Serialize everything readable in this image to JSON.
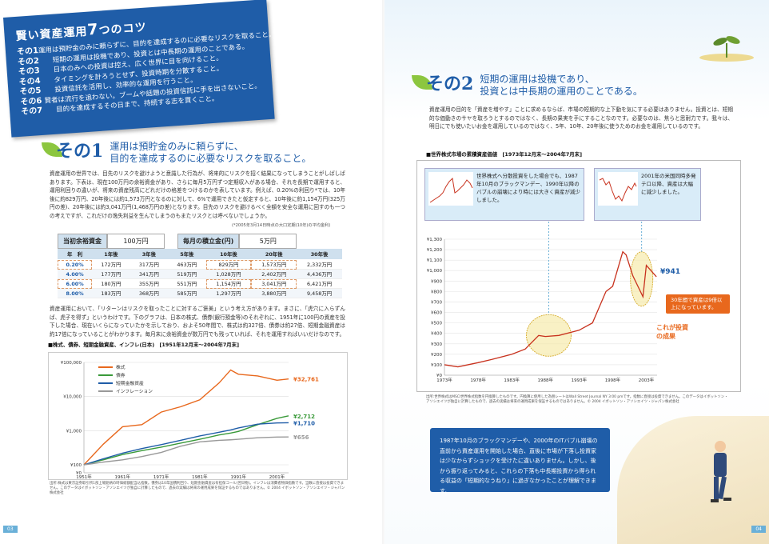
{
  "tips": {
    "title_prefix": "賢い資産運用",
    "title_big": "7",
    "title_suffix": "つのコツ",
    "items": [
      {
        "num": "その1",
        "text": "運用は預貯金のみに頼らずに、目的を達成するのに必要なリスクを取ること。"
      },
      {
        "num": "その2",
        "text": "短期の運用は投機であり、投資とは中長期の運用のことである。"
      },
      {
        "num": "その3",
        "text": "日本のみへの投資は控え、広く世界に目を向けること。"
      },
      {
        "num": "その4",
        "text": "タイミングを計ろうとせず、投資時期を分散すること。"
      },
      {
        "num": "その5",
        "text": "投資信託を活用し、効率的な運用を行うこと。"
      },
      {
        "num": "その6",
        "text": "賢者は流行を追わない。ブームや話題の投資信託に手を出さないこと。"
      },
      {
        "num": "その7",
        "text": "目的を達成するその日まで、持続する志を貫くこと。"
      }
    ]
  },
  "sec1": {
    "num": "その1",
    "title_line1": "運用は預貯金のみに頼らずに、",
    "title_line2": "目的を達成するのに必要なリスクを取ること。",
    "body1": "資産運用の世界では、目先のリスクを避けようと意識した行為が、将来的にリスクを招く結果になってしまうことがしばしばあります。下表は、現在100万円の余裕資金があり、さらに毎月5万円ずつ定期収入がある場合、それを長期で運用すると、運用利回りの違いが、将来の資産残高にどれだけの格差をつけるのかを表しています。例えば、0.20%の利回り*では、10年後に約829万円、20年後には約1,573万円となるのに対して、6%で運用できたと仮定すると、10年後に約1,154万円(325万円の差)、20年後には約3,041万円(1,468万円の差)となります。目先のリスクを避けるべく全額を安全な運用に回すのも一つの考えですが、これだけの逸失利益を生んでしまうのもまたリスクとは呼べないでしょうか。",
    "note": "(*2005年3月14日時点の大口定期(10年)の平均金利)",
    "initial_label": "当初余裕資金",
    "initial_value": "100万円",
    "monthly_label": "毎月の積立金(円)",
    "monthly_value": "5万円",
    "table": {
      "headers": [
        "年　利",
        "1年後",
        "3年後",
        "5年後",
        "10年後",
        "20年後",
        "30年後"
      ],
      "rows": [
        [
          "0.20%",
          "172万円",
          "317万円",
          "463万円",
          "829万円",
          "1,573万円",
          "2,332万円"
        ],
        [
          "4.00%",
          "177万円",
          "341万円",
          "519万円",
          "1,028万円",
          "2,402万円",
          "4,436万円"
        ],
        [
          "6.00%",
          "180万円",
          "355万円",
          "551万円",
          "1,154万円",
          "3,041万円",
          "6,421万円"
        ],
        [
          "8.00%",
          "183万円",
          "368万円",
          "585万円",
          "1,297万円",
          "3,880万円",
          "9,458万円"
        ]
      ]
    },
    "body2": "資産運用において、「リターンはリスクを取ったことに対するご褒美」という考え方があります。まさに、「虎穴に入らずんば、虎子を得ず」というわけです。下のグラフは、日本の株式、債券(銀行預金等)のそれぞれに、1951年に100円の資産を投下した場合、現在いくらになっていたかを示しており、およそ50年間で、株式は約327倍、債券は約27倍、短期金融資産は約17倍になっていることがわかります。毎月末に余裕資金が数万円でも残っていれば、それを運用すればいいだけなのです。",
    "chart_title": "■株式、債券、短期金融資産、インフレ(日本)　[1951年12月末〜2004年7月末]",
    "chart_src": "出所:株式は東京証券取引所1部上場銘柄の時価総額配当込指数。債券は10年国債利回り、短期金融資産は有担保コール(翌日物)。インフレは消費者物価指数です。当数に直接は投資できません。このデータはイボットソン・アソシエイツが独自に計算したもので、過去の実績は将来の運用成果を保証するものではありません。© 2004 イボットソン・アソシエイツ・ジャパン株式会社",
    "page_num": "03"
  },
  "chart_data": [
    {
      "type": "line",
      "title": "株式、債券、短期金融資産、インフレ(日本)",
      "ylabel_ticks": [
        "¥0",
        "¥100",
        "¥1,000",
        "¥10,000",
        "¥100,000"
      ],
      "x_ticks": [
        "1951年",
        "1961年",
        "1971年",
        "1981年",
        "1991年",
        "2001年"
      ],
      "yscale": "log",
      "ylim": [
        100,
        100000
      ],
      "x": [
        1951,
        1956,
        1961,
        1966,
        1971,
        1976,
        1981,
        1986,
        1989,
        1991,
        1996,
        2001,
        2004
      ],
      "series": [
        {
          "name": "株式",
          "color": "#e8681d",
          "values": [
            100,
            400,
            1300,
            1500,
            3500,
            5000,
            8000,
            25000,
            60000,
            45000,
            40000,
            30000,
            32761
          ],
          "end_label": "¥32,761"
        },
        {
          "name": "債券",
          "color": "#3a9a3a",
          "values": [
            100,
            140,
            200,
            260,
            330,
            430,
            560,
            750,
            850,
            950,
            1500,
            2300,
            2712
          ],
          "end_label": "¥2,712"
        },
        {
          "name": "短期金融資産",
          "color": "#1f5da8",
          "values": [
            100,
            150,
            220,
            300,
            390,
            520,
            700,
            900,
            1050,
            1200,
            1550,
            1680,
            1710
          ],
          "end_label": "¥1,710"
        },
        {
          "name": "インフレーション",
          "color": "#999999",
          "values": [
            100,
            120,
            140,
            175,
            230,
            350,
            470,
            520,
            540,
            560,
            620,
            650,
            656
          ],
          "end_label": "¥656"
        }
      ]
    },
    {
      "type": "line",
      "title": "世界株式市場の累積資産価値",
      "y_ticks": [
        "¥0",
        "¥100",
        "¥200",
        "¥300",
        "¥400",
        "¥500",
        "¥600",
        "¥700",
        "¥800",
        "¥900",
        "¥1,000",
        "¥1,100",
        "¥1,200",
        "¥1,300"
      ],
      "x_ticks": [
        "1973年",
        "1978年",
        "1983年",
        "1988年",
        "1993年",
        "1998年",
        "2003年"
      ],
      "ylim": [
        0,
        1300
      ],
      "x": [
        1973,
        1975,
        1978,
        1980,
        1983,
        1985,
        1987,
        1988,
        1990,
        1993,
        1995,
        1997,
        1998,
        1999.5,
        2000,
        2001,
        2002.5,
        2003,
        2004.5
      ],
      "series": [
        {
          "name": "世界株式",
          "color": "#c8321e",
          "values": [
            100,
            80,
            120,
            150,
            200,
            250,
            380,
            370,
            380,
            430,
            500,
            800,
            850,
            1180,
            1150,
            950,
            750,
            1050,
            941
          ],
          "end_label": "¥941"
        }
      ]
    }
  ],
  "sec2": {
    "num": "その2",
    "title_line1": "短期の運用は投機であり、",
    "title_line2": "投資とは中長期の運用のことである。",
    "body": "資産運用の目的を「資産を増やす」ことに求めるならば、市場の短期的な上下動を気にする必要はありません。投資とは、短期的な価動きのサヤを取ろうとするのではなく、長期の果実を手にすることなのです。必要なのは、焦らと思耐力です。我々は、明日にでも使いたいお金を運用しているのではなく、5年、10年、20年後に使うためのお金を運用しているのです。",
    "chart_title": "■世界株式市場の累積資産価値　[1973年12月末〜2004年7月末]",
    "callout1": "世界株式へ分散投資をした場合でも、1987年10月のブラックマンデー、1990年以降のバブルの崩壊により時には大きく資産が減少しました。",
    "callout2": "2001年の米国同時多発テロ以降、資産は大幅に減少しました。",
    "orange_box": "30年間で資産は9倍以上になっています。",
    "orange_text1": "これが投資",
    "orange_text2": "の成果",
    "chart_src": "出所:世界株式はMSCI世界株式指数を円換算したものです。円換算に使用した為替レートはWall Street Journal NY 3:00 pmです。指数に直接は投資できません。このデータはイボットソン・アソシエイツが独自に計算したもので、過去の実績は将来の運用成果を保証するものではありません。© 2004 イボットソン・アソシエイツ・ジャパン株式会社",
    "summary": "1987年10月のブラックマンデーや、2000年のITバブル崩壊の直前から資産運用を開始した場合、直後に市場が下落し投資家は少なからずショックを受けたに違いありません。しかし、後から振り返ってみると、これらの下落も中長期投資から得られる収益の「短期的なうねり」に過ぎなかったことが理解できます。",
    "page_num": "04"
  }
}
